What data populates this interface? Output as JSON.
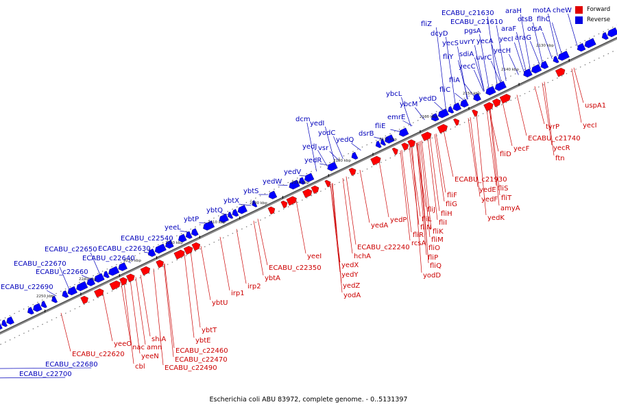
{
  "caption": "Escherichia coli ABU 83972, complete genome. - 0..5131397",
  "legend": [
    {
      "label": "Forward",
      "color": "#e00000"
    },
    {
      "label": "Reverse",
      "color": "#0000e0"
    }
  ],
  "colors": {
    "forward": "#ff0000",
    "reverse": "#0000ff",
    "forward_label": "#cc0000",
    "reverse_label": "#0000bb",
    "backbone": "#888888"
  },
  "ticks": [
    "2130 kbp",
    "2140 kbp",
    "2150 kbp",
    "2160 kbp",
    "2170 kbp",
    "2180 kbp",
    "2190 kbp",
    "2200 kbp",
    "2210 kbp",
    "2220 kbp",
    "2230 kbp",
    "2240 kbp",
    "2250 kbp"
  ],
  "reverse_genes": [
    "ECABU_c21630",
    "motA",
    "cheW",
    "araH",
    "ECABU_c21610",
    "otsB",
    "flhC",
    "fliZ",
    "araF",
    "otsA",
    "dcyD",
    "pgsA",
    "yecI",
    "araG",
    "yecS",
    "uvrY",
    "yecA",
    "sdiA",
    "yecH",
    "fliY",
    "uvrC",
    "yecC",
    "fliA",
    "fliC",
    "ybcL",
    "ybcM",
    "yedD",
    "emrE",
    "fliE",
    "dcm",
    "yedI",
    "yodC",
    "yedQ",
    "dsrB",
    "yedJ",
    "vsr",
    "yedR",
    "yedV",
    "yedW",
    "ybtS",
    "ybtX",
    "ybtQ",
    "ybtP",
    "yeeL",
    "ECABU_c22540",
    "ECABU_c22650",
    "ECABU_c22630",
    "ECABU_c22640",
    "ECABU_c22670",
    "ECABU_c22660",
    "ECABU_c22690",
    "ECABU_c22680",
    "ECABU_c22700"
  ],
  "forward_genes": [
    "uspA1",
    "yecI",
    "tyrP",
    "ECABU_c21740",
    "yecR",
    "yecF",
    "ftn",
    "fliD",
    "ECABU_c21930",
    "yedE",
    "fliS",
    "fliT",
    "yedF",
    "amyA",
    "yedK",
    "fliF",
    "fliG",
    "fliJ",
    "fliH",
    "fliL",
    "fliI",
    "fliN",
    "fliK",
    "fliR",
    "fliM",
    "rcsA",
    "fliO",
    "fliP",
    "fliQ",
    "yodD",
    "yedA",
    "yedP",
    "ECABU_c22240",
    "hchA",
    "yedX",
    "yedY",
    "yedZ",
    "yodA",
    "yeeI",
    "ECABU_c22350",
    "ybtA",
    "irp2",
    "irp1",
    "ybtU",
    "ybtT",
    "ybtE",
    "ECABU_c22460",
    "ECABU_c22470",
    "ECABU_c22490",
    "shiA",
    "amn",
    "yeeN",
    "nac",
    "cbl",
    "yeeO",
    "ECABU_c22620"
  ]
}
